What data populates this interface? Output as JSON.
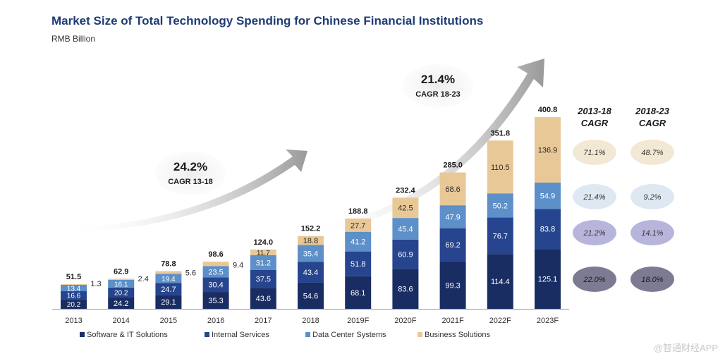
{
  "chart_data": {
    "type": "bar",
    "title": "Market Size of Total Technology Spending for Chinese Financial Institutions",
    "subtitle": "RMB Billion",
    "categories": [
      "2013",
      "2014",
      "2015",
      "2016",
      "2017",
      "2018",
      "2019F",
      "2020F",
      "2021F",
      "2022F",
      "2023F"
    ],
    "totals": [
      "51.5",
      "62.9",
      "78.8",
      "98.6",
      "124.0",
      "152.2",
      "188.8",
      "232.4",
      "285.0",
      "351.8",
      "400.8"
    ],
    "ylim": [
      0,
      420
    ],
    "series": [
      {
        "name": "Software & IT Solutions",
        "color": "#1a2d63",
        "values": [
          20.2,
          24.2,
          29.1,
          35.3,
          43.6,
          54.6,
          68.1,
          83.6,
          99.3,
          114.4,
          125.1
        ]
      },
      {
        "name": "Internal Services",
        "color": "#26458e",
        "values": [
          16.6,
          20.2,
          24.7,
          30.4,
          37.5,
          43.4,
          51.8,
          60.9,
          69.2,
          76.7,
          83.8
        ]
      },
      {
        "name": "Data Center Systems",
        "color": "#5d8fc9",
        "values": [
          13.4,
          16.1,
          19.4,
          23.5,
          31.2,
          35.4,
          41.2,
          45.4,
          47.9,
          50.2,
          54.9
        ]
      },
      {
        "name": "Business Solutions",
        "color": "#e9c897",
        "values": [
          1.3,
          2.4,
          5.6,
          9.4,
          11.7,
          18.8,
          27.7,
          42.5,
          68.6,
          110.5,
          136.9
        ]
      }
    ],
    "annotations": [
      {
        "value": "24.2%",
        "label": "CAGR 13-18"
      },
      {
        "value": "21.4%",
        "label": "CAGR 18-23"
      }
    ],
    "cagr_table": {
      "headers": [
        "2013-18 CAGR",
        "2018-23 CAGR"
      ],
      "rows": [
        {
          "series": "Business Solutions",
          "color": "#f3e8d3",
          "values": [
            "71.1%",
            "48.7%"
          ]
        },
        {
          "series": "Data Center Systems",
          "color": "#dde8f3",
          "values": [
            "21.4%",
            "9.2%"
          ]
        },
        {
          "series": "Internal Services",
          "color": "#b8b5dc",
          "values": [
            "21.2%",
            "14.1%"
          ]
        },
        {
          "series": "Software & IT Solutions",
          "color": "#7d7b93",
          "values": [
            "22.0%",
            "18.0%"
          ]
        }
      ]
    }
  },
  "watermark": "@智通财经APP"
}
